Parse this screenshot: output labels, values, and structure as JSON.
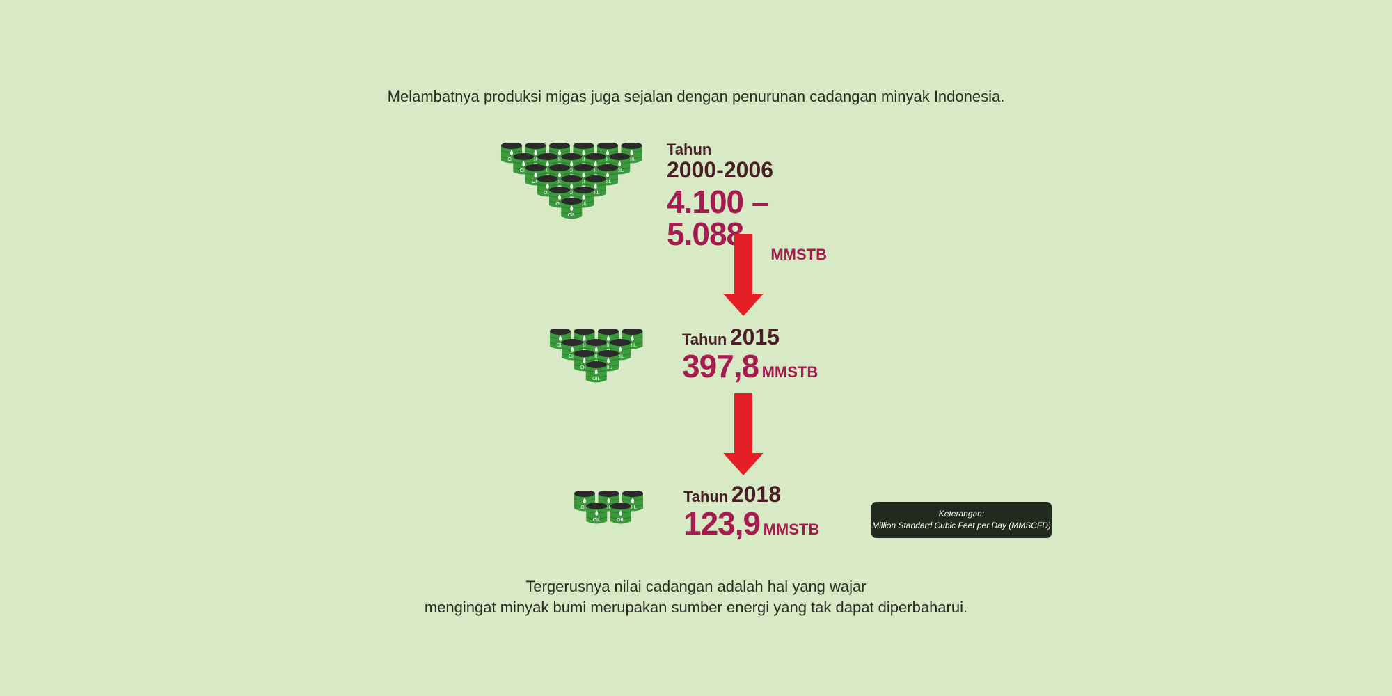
{
  "intro_text": "Melambatnya produksi migas juga sejalan dengan penurunan cadangan minyak Indonesia.",
  "barrel_label": "OIL",
  "periods": [
    {
      "tahun_label": "Tahun",
      "year": "2000-2006",
      "value": "4.100 – 5.088",
      "unit": "MMSTB"
    },
    {
      "tahun_label": "Tahun",
      "year": "2015",
      "value": "397,8",
      "unit": "MMSTB"
    },
    {
      "tahun_label": "Tahun",
      "year": "2018",
      "value": "123,9",
      "unit": "MMSTB"
    }
  ],
  "note": {
    "title": "Keterangan:",
    "text": "Million Standard Cubic Feet per Day (MMSCFD)"
  },
  "outro_lines": [
    "Tergerusnya nilai cadangan adalah hal yang wajar",
    "mengingat minyak bumi merupakan sumber energi yang tak dapat diperbaharui."
  ],
  "colors": {
    "background": "#d7eac5",
    "barrel": "#3a9a3c",
    "arrow": "#e31e24",
    "value": "#a51b4f",
    "year": "#4a1e26"
  }
}
